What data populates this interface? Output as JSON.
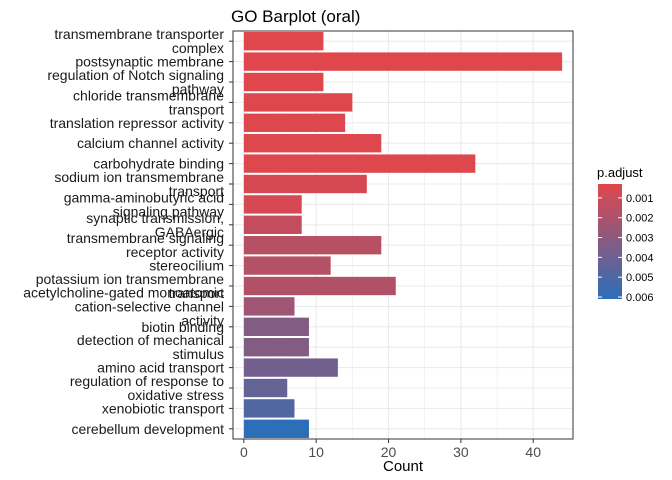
{
  "chart_data": {
    "type": "bar",
    "orientation": "horizontal",
    "title": "GO Barplot (oral)",
    "xlabel": "Count",
    "ylabel": "",
    "xlim": [
      -1.5,
      45.5
    ],
    "xticks": [
      0,
      10,
      20,
      30,
      40
    ],
    "grid": true,
    "legend_placement": "right",
    "categories": [
      "transmembrane transporter complex",
      "postsynaptic membrane",
      "regulation of Notch signaling pathway",
      "chloride transmembrane transport",
      "translation repressor activity",
      "calcium channel activity",
      "carbohydrate binding",
      "sodium ion transmembrane transport",
      "gamma-aminobutyric acid signaling pathway",
      "synaptic transmission, GABAergic",
      "transmembrane signaling receptor activity",
      "stereocilium",
      "potassium ion transmembrane transport",
      "acetylcholine-gated monoatomic cation-selective channel activity",
      "biotin binding",
      "detection of mechanical stimulus",
      "amino acid transport",
      "regulation of response to oxidative stress",
      "xenobiotic transport",
      "cerebellum development"
    ],
    "values": [
      11,
      44,
      11,
      15,
      14,
      19,
      32,
      17,
      8,
      8,
      19,
      12,
      21,
      7,
      9,
      9,
      13,
      6,
      7,
      9
    ],
    "p_adjust": [
      0.0003,
      0.0003,
      0.0003,
      0.0004,
      0.0004,
      0.0004,
      0.0004,
      0.0006,
      0.0006,
      0.0012,
      0.0016,
      0.0017,
      0.0018,
      0.0024,
      0.0033,
      0.0033,
      0.0038,
      0.0043,
      0.0049,
      0.0061
    ],
    "color_scale": {
      "title": "p.adjust",
      "range": [
        0.0003,
        0.0061
      ],
      "ticks": [
        0.001,
        0.002,
        0.003,
        0.004,
        0.005,
        0.006
      ],
      "tick_labels": [
        "0.001",
        "0.002",
        "0.003",
        "0.004",
        "0.005",
        "0.006"
      ],
      "low_color": "#e0474c",
      "high_color": "#2c6fb8"
    }
  },
  "colors": {
    "panel_background": "#ffffff",
    "grid": "#ebebeb",
    "panel_border": "#333333"
  }
}
